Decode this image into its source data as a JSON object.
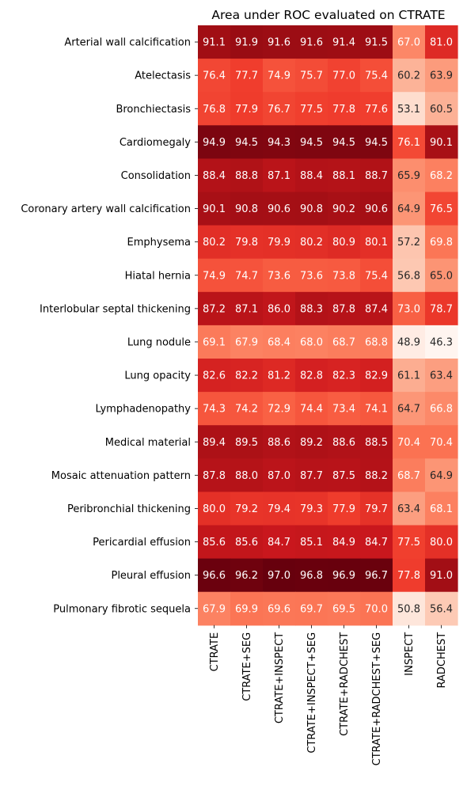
{
  "chart_data": {
    "type": "heatmap",
    "title": "Area under ROC evaluated on CTRATE",
    "xlabel": "",
    "ylabel": "",
    "colormap": "Reds",
    "vmin": 46.3,
    "vmax": 97.0,
    "grid": false,
    "colorbar": false,
    "columns": [
      "CTRATE",
      "CTRATE+SEG",
      "CTRATE+INSPECT",
      "CTRATE+INSPECT+SEG",
      "CTRATE+RADCHEST",
      "CTRATE+RADCHEST+SEG",
      "INSPECT",
      "RADCHEST"
    ],
    "rows": [
      "Arterial wall calcification",
      "Atelectasis",
      "Bronchiectasis",
      "Cardiomegaly",
      "Consolidation",
      "Coronary artery wall calcification",
      "Emphysema",
      "Hiatal hernia",
      "Interlobular septal thickening",
      "Lung nodule",
      "Lung opacity",
      "Lymphadenopathy",
      "Medical material",
      "Mosaic attenuation pattern",
      "Peribronchial thickening",
      "Pericardial effusion",
      "Pleural effusion",
      "Pulmonary fibrotic sequela"
    ],
    "values": [
      [
        91.1,
        91.9,
        91.6,
        91.6,
        91.4,
        91.5,
        67.0,
        81.0
      ],
      [
        76.4,
        77.7,
        74.9,
        75.7,
        77.0,
        75.4,
        60.2,
        63.9
      ],
      [
        76.8,
        77.9,
        76.7,
        77.5,
        77.8,
        77.6,
        53.1,
        60.5
      ],
      [
        94.9,
        94.5,
        94.3,
        94.5,
        94.5,
        94.5,
        76.1,
        90.1
      ],
      [
        88.4,
        88.8,
        87.1,
        88.4,
        88.1,
        88.7,
        65.9,
        68.2
      ],
      [
        90.1,
        90.8,
        90.6,
        90.8,
        90.2,
        90.6,
        64.9,
        76.5
      ],
      [
        80.2,
        79.8,
        79.9,
        80.2,
        80.9,
        80.1,
        57.2,
        69.8
      ],
      [
        74.9,
        74.7,
        73.6,
        73.6,
        73.8,
        75.4,
        56.8,
        65.0
      ],
      [
        87.2,
        87.1,
        86.0,
        88.3,
        87.8,
        87.4,
        73.0,
        78.7
      ],
      [
        69.1,
        67.9,
        68.4,
        68.0,
        68.7,
        68.8,
        48.9,
        46.3
      ],
      [
        82.6,
        82.2,
        81.2,
        82.8,
        82.3,
        82.9,
        61.1,
        63.4
      ],
      [
        74.3,
        74.2,
        72.9,
        74.4,
        73.4,
        74.1,
        64.7,
        66.8
      ],
      [
        89.4,
        89.5,
        88.6,
        89.2,
        88.6,
        88.5,
        70.4,
        70.4
      ],
      [
        87.8,
        88.0,
        87.0,
        87.7,
        87.5,
        88.2,
        68.7,
        64.9
      ],
      [
        80.0,
        79.2,
        79.4,
        79.3,
        77.9,
        79.7,
        63.4,
        68.1
      ],
      [
        85.6,
        85.6,
        84.7,
        85.1,
        84.9,
        84.7,
        77.5,
        80.0
      ],
      [
        96.6,
        96.2,
        97.0,
        96.8,
        96.9,
        96.7,
        77.8,
        91.0
      ],
      [
        67.9,
        69.9,
        69.6,
        69.7,
        69.5,
        70.0,
        50.8,
        56.4
      ]
    ]
  }
}
